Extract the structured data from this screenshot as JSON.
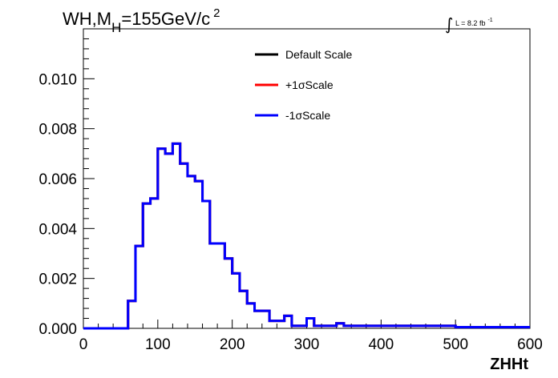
{
  "chart_data": {
    "type": "line",
    "drawstyle": "histogram-step",
    "title": {
      "prefix": "WH,M",
      "subscript": "H",
      "main": "=155GeV/c",
      "superscript": "2"
    },
    "lumi": {
      "integral_symbol": "∫",
      "text": "L = 8.2 fb",
      "superscript": "-1"
    },
    "xlabel": "ZHHt",
    "ylabel": "",
    "xlim": [
      0,
      600
    ],
    "ylim": [
      0,
      0.012
    ],
    "x_ticks": [
      "0",
      "100",
      "200",
      "300",
      "400",
      "500",
      "600"
    ],
    "y_ticks": [
      "0.000",
      "0.002",
      "0.004",
      "0.006",
      "0.008",
      "0.010"
    ],
    "legend_position": "top-center",
    "grid": false,
    "bin_width": 10,
    "bin_low_edges": [
      0,
      10,
      20,
      30,
      40,
      50,
      60,
      70,
      80,
      90,
      100,
      110,
      120,
      130,
      140,
      150,
      160,
      170,
      180,
      190,
      200,
      210,
      220,
      230,
      240,
      250,
      260,
      270,
      280,
      290,
      300,
      310,
      320,
      330,
      340,
      350,
      360,
      370,
      380,
      390,
      400,
      410,
      420,
      430,
      440,
      450,
      460,
      470,
      480,
      490,
      500,
      510,
      520,
      530,
      540,
      550,
      560,
      570,
      580,
      590
    ],
    "series": [
      {
        "name": "Default Scale",
        "color": "#000000",
        "values": [
          0,
          0,
          0,
          0,
          0,
          0,
          0.0011,
          0.0033,
          0.005,
          0.0052,
          0.0072,
          0.007,
          0.0074,
          0.0066,
          0.0061,
          0.0059,
          0.0051,
          0.0034,
          0.0034,
          0.0028,
          0.0022,
          0.0015,
          0.001,
          0.0007,
          0.0007,
          0.0003,
          0.0003,
          0.0005,
          0.0001,
          0.0001,
          0.0004,
          0.0001,
          0.0001,
          0.0001,
          0.0002,
          0.0001,
          0.0001,
          0.0001,
          0.0001,
          0.0001,
          0.0001,
          0.0001,
          0.0001,
          0.0001,
          0.0001,
          0.0001,
          0.0001,
          0.0001,
          0.0001,
          0.0001,
          5e-05,
          5e-05,
          5e-05,
          5e-05,
          5e-05,
          5e-05,
          5e-05,
          5e-05,
          5e-05,
          5e-05
        ]
      },
      {
        "name": "+1σScale",
        "color": "#ff0000",
        "values": [
          0,
          0,
          0,
          0,
          0,
          0,
          0.0011,
          0.0033,
          0.005,
          0.0052,
          0.0072,
          0.007,
          0.0074,
          0.0066,
          0.0061,
          0.0059,
          0.0051,
          0.0034,
          0.0034,
          0.0028,
          0.0022,
          0.0015,
          0.001,
          0.0007,
          0.0007,
          0.0003,
          0.0003,
          0.0005,
          0.0001,
          0.0001,
          0.0004,
          0.0001,
          0.0001,
          0.0001,
          0.0002,
          0.0001,
          0.0001,
          0.0001,
          0.0001,
          0.0001,
          0.0001,
          0.0001,
          0.0001,
          0.0001,
          0.0001,
          0.0001,
          0.0001,
          0.0001,
          0.0001,
          0.0001,
          5e-05,
          5e-05,
          5e-05,
          5e-05,
          5e-05,
          5e-05,
          5e-05,
          5e-05,
          5e-05,
          5e-05
        ]
      },
      {
        "name": "-1σScale",
        "color": "#0000ff",
        "values": [
          0,
          0,
          0,
          0,
          0,
          0,
          0.0011,
          0.0033,
          0.005,
          0.0052,
          0.0072,
          0.007,
          0.0074,
          0.0066,
          0.0061,
          0.0059,
          0.0051,
          0.0034,
          0.0034,
          0.0028,
          0.0022,
          0.0015,
          0.001,
          0.0007,
          0.0007,
          0.0003,
          0.0003,
          0.0005,
          0.0001,
          0.0001,
          0.0004,
          0.0001,
          0.0001,
          0.0001,
          0.0002,
          0.0001,
          0.0001,
          0.0001,
          0.0001,
          0.0001,
          0.0001,
          0.0001,
          0.0001,
          0.0001,
          0.0001,
          0.0001,
          0.0001,
          0.0001,
          0.0001,
          0.0001,
          5e-05,
          5e-05,
          5e-05,
          5e-05,
          5e-05,
          5e-05,
          5e-05,
          5e-05,
          5e-05,
          5e-05
        ]
      }
    ]
  }
}
